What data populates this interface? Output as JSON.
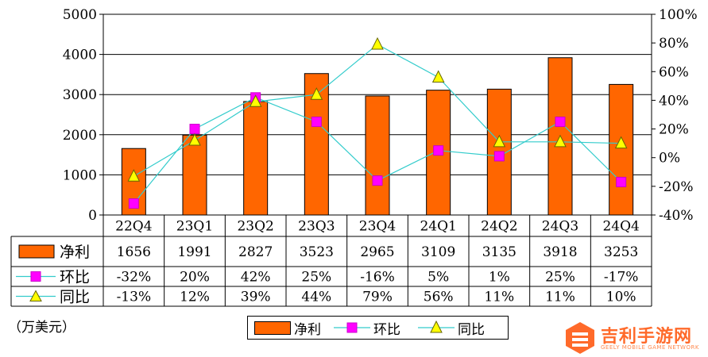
{
  "chart_data": {
    "type": "bar",
    "categories": [
      "22Q4",
      "23Q1",
      "23Q2",
      "23Q3",
      "23Q4",
      "24Q1",
      "24Q2",
      "24Q3",
      "24Q4"
    ],
    "left_axis": {
      "ylim": [
        0,
        5000
      ],
      "ticks": [
        "0",
        "1000",
        "2000",
        "3000",
        "4000",
        "5000"
      ]
    },
    "right_axis": {
      "ylim": [
        -40,
        100
      ],
      "ticks": [
        "-40%",
        "-20%",
        "0%",
        "20%",
        "40%",
        "60%",
        "80%",
        "100%"
      ]
    },
    "grid": "horizontal",
    "series": [
      {
        "name": "净利",
        "type": "bar",
        "axis": "left",
        "color": "#ff6600",
        "values": [
          1656,
          1991,
          2827,
          3523,
          2965,
          3109,
          3135,
          3918,
          3253
        ],
        "labels": [
          "1656",
          "1991",
          "2827",
          "3523",
          "2965",
          "3109",
          "3135",
          "3918",
          "3253"
        ]
      },
      {
        "name": "环比",
        "type": "line",
        "axis": "right",
        "marker": "square",
        "line_color": "#33cccc",
        "marker_color": "#ff00ff",
        "values": [
          -32,
          20,
          42,
          25,
          -16,
          5,
          1,
          25,
          -17
        ],
        "labels": [
          "-32%",
          "20%",
          "42%",
          "25%",
          "-16%",
          "5%",
          "1%",
          "25%",
          "-17%"
        ]
      },
      {
        "name": "同比",
        "type": "line",
        "axis": "right",
        "marker": "triangle",
        "line_color": "#33cccc",
        "marker_color": "#ffff00",
        "values": [
          -13,
          12,
          39,
          44,
          79,
          56,
          11,
          11,
          10
        ],
        "labels": [
          "-13%",
          "12%",
          "39%",
          "44%",
          "79%",
          "56%",
          "11%",
          "11%",
          "10%"
        ]
      }
    ],
    "legend": "bottom-center"
  },
  "unit_label": "（万美元）",
  "watermark": {
    "title": "吉利手游网",
    "subtitle": "GEELY MOBILE GAME NETWORK"
  }
}
